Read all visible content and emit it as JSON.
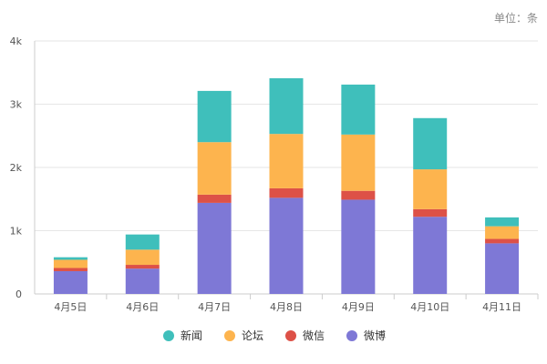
{
  "unit_label": "单位：条",
  "colors": {
    "新闻": "#3fbfbb",
    "论坛": "#fdb44e",
    "微信": "#dd5147",
    "微博": "#7e78d6",
    "grid": "#e6e6e6",
    "axis": "#cccccc"
  },
  "chart_data": {
    "type": "bar",
    "stacked": true,
    "categories": [
      "4月5日",
      "4月6日",
      "4月7日",
      "4月8日",
      "4月9日",
      "4月10日",
      "4月11日"
    ],
    "series": [
      {
        "name": "微博",
        "values": [
          360,
          400,
          1440,
          1520,
          1490,
          1220,
          800
        ]
      },
      {
        "name": "微信",
        "values": [
          50,
          60,
          130,
          150,
          140,
          120,
          70
        ]
      },
      {
        "name": "论坛",
        "values": [
          130,
          240,
          830,
          860,
          890,
          630,
          200
        ]
      },
      {
        "name": "新闻",
        "values": [
          40,
          240,
          810,
          880,
          790,
          810,
          140
        ]
      }
    ],
    "ylim": [
      0,
      4000
    ],
    "yticks": [
      0,
      1000,
      2000,
      3000,
      4000
    ],
    "ytick_labels": [
      "0",
      "1k",
      "2k",
      "3k",
      "4k"
    ],
    "grid": true,
    "legend": {
      "position": "bottom",
      "order": [
        "新闻",
        "论坛",
        "微信",
        "微博"
      ]
    }
  }
}
